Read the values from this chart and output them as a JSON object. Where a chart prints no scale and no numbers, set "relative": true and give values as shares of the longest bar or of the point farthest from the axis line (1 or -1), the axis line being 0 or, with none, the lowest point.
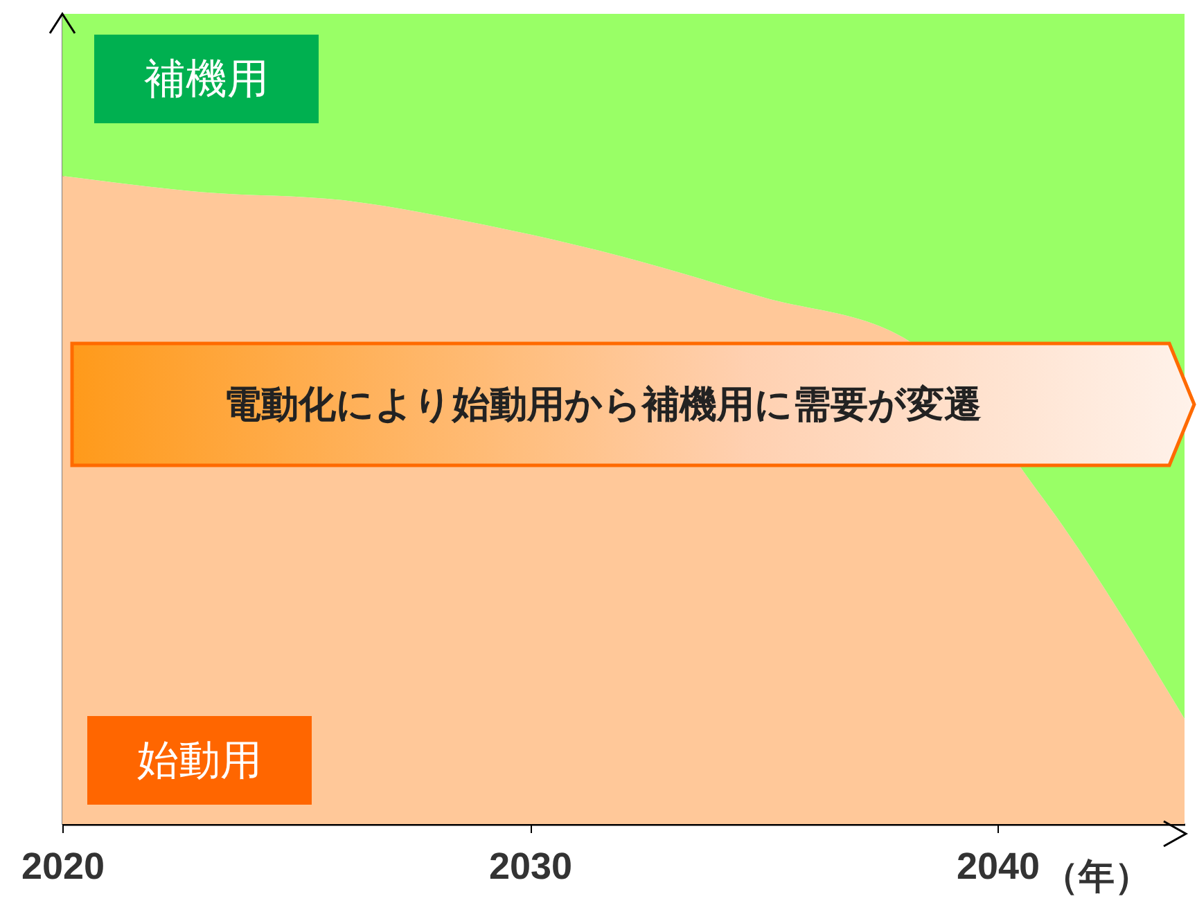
{
  "chart_data": {
    "type": "area",
    "relative": true,
    "stacked": true,
    "grid": false,
    "x": [
      2020,
      2023,
      2026,
      2029,
      2032,
      2035,
      2038,
      2041,
      2044
    ],
    "xlim": [
      2020,
      2044
    ],
    "xticks": [
      2020,
      2030,
      2040
    ],
    "xlabel": "（年）",
    "series": [
      {
        "name": "始動用",
        "color": "#ffc899",
        "values": [
          0.8,
          0.78,
          0.77,
          0.74,
          0.7,
          0.65,
          0.6,
          0.4,
          0.13
        ]
      },
      {
        "name": "補機用",
        "color": "#99ff66",
        "values": [
          0.2,
          0.22,
          0.23,
          0.26,
          0.3,
          0.35,
          0.4,
          0.6,
          0.87
        ]
      }
    ],
    "annotations": [
      "電動化により始動用から補機用に需要が変遷"
    ]
  }
}
